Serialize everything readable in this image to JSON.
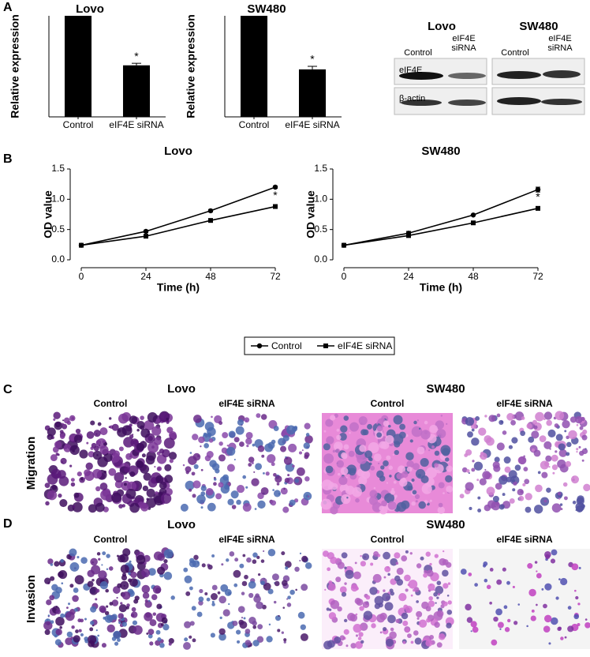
{
  "chart_data": [
    {
      "type": "bar",
      "title": "Lovo",
      "y_label": "Relative expression",
      "categories": [
        "Control",
        "eIF4E siRNA"
      ],
      "values": [
        1,
        0.51
      ],
      "errors": [
        0,
        0.02
      ],
      "significance": [
        null,
        "*"
      ],
      "color": "#000000",
      "ylim": [
        0,
        1
      ]
    },
    {
      "type": "bar",
      "title": "SW480",
      "y_label": "Relative expression",
      "categories": [
        "Control",
        "eIF4E siRNA"
      ],
      "values": [
        1,
        0.47
      ],
      "errors": [
        0,
        0.03
      ],
      "significance": [
        null,
        "*"
      ],
      "color": "#000000",
      "ylim": [
        0,
        1
      ]
    },
    {
      "type": "line",
      "title": "Lovo",
      "x_label": "Time (h)",
      "y_label": "OD value",
      "x": [
        0,
        24,
        48,
        72
      ],
      "series": [
        {
          "name": "Control",
          "color": "#000000",
          "marker": "circle",
          "values": [
            0.24,
            0.47,
            0.81,
            1.2
          ],
          "errors": [
            0.01,
            0.02,
            0.02,
            0.02
          ],
          "significance": [
            null,
            null,
            null,
            null
          ]
        },
        {
          "name": "eIF4E siRNA",
          "color": "#000000",
          "marker": "square",
          "values": [
            0.24,
            0.39,
            0.65,
            0.88
          ],
          "errors": [
            0.01,
            0.01,
            0.01,
            0.03
          ],
          "significance": [
            null,
            null,
            null,
            "*"
          ]
        }
      ],
      "xlim": [
        0,
        72
      ],
      "xticks": [
        0,
        24,
        48,
        72
      ],
      "ylim": [
        0,
        1.5
      ],
      "yticks": [
        {
          "value": 0,
          "label": "0.0"
        },
        0.5,
        {
          "value": 1,
          "label": "1.0"
        },
        1.5
      ]
    },
    {
      "type": "line",
      "title": "SW480",
      "x_label": "Time (h)",
      "y_label": "OD value",
      "x": [
        0,
        24,
        48,
        72
      ],
      "series": [
        {
          "color": "#000000",
          "marker": "circle",
          "values": [
            0.24,
            0.44,
            0.74,
            1.16
          ],
          "errors": [
            0.01,
            0.03,
            0.01,
            0.04
          ],
          "significance": [
            null,
            null,
            null,
            null
          ]
        },
        {
          "color": "#000000",
          "marker": "square",
          "values": [
            0.24,
            0.4,
            0.61,
            0.85
          ],
          "errors": [
            0.01,
            0.01,
            0.01,
            0.03
          ],
          "significance": [
            null,
            null,
            null,
            "*"
          ]
        }
      ],
      "xlim": [
        0,
        72
      ],
      "xticks": [
        0,
        24,
        48,
        72
      ],
      "ylim": [
        0,
        1.5
      ],
      "yticks": [
        {
          "value": 0,
          "label": "0.0"
        },
        0.5,
        {
          "value": 1,
          "label": "1.0"
        },
        1.5
      ]
    }
  ],
  "panel_labels": [
    "A",
    "B",
    "C",
    "D"
  ],
  "blot": {
    "titles": [
      "Lovo",
      "SW480"
    ],
    "lanes": [
      "Control",
      "eIF4E siRNA"
    ],
    "proteins": [
      "eIF4E",
      "β-actin"
    ]
  },
  "image_panels": [
    {
      "row_label": "Migration",
      "groups": [
        {
          "title": "Lovo",
          "columns": [
            "Control",
            "eIF4E siRNA"
          ]
        },
        {
          "title": "SW480",
          "columns": [
            "Control",
            "eIF4E siRNA"
          ]
        }
      ]
    },
    {
      "row_label": "Invasion",
      "groups": [
        {
          "title": "Lovo",
          "columns": [
            "Control",
            "eIF4E siRNA"
          ]
        },
        {
          "title": "SW480",
          "columns": [
            "Control",
            "eIF4E siRNA"
          ]
        }
      ]
    }
  ]
}
